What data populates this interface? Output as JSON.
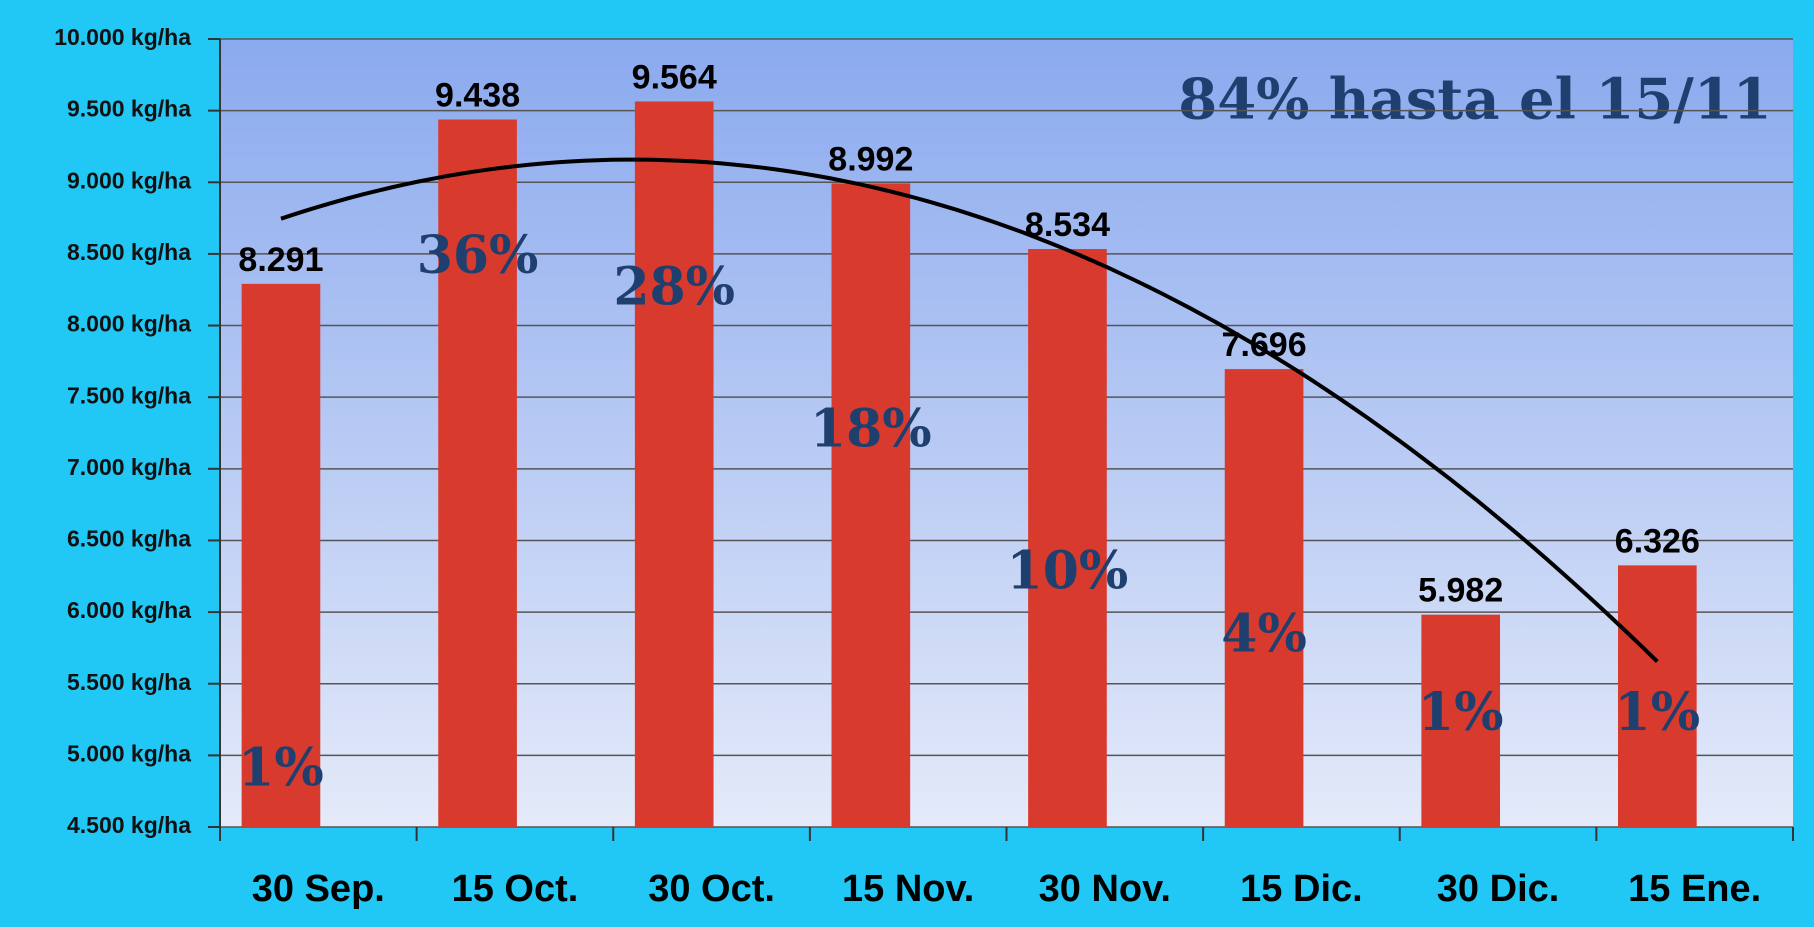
{
  "chart_data": {
    "type": "bar",
    "annotation": "84% hasta el 15/11",
    "categories": [
      "30 Sep.",
      "15 Oct.",
      "30 Oct.",
      "15 Nov.",
      "30 Nov.",
      "15 Dic.",
      "30 Dic.",
      "15 Ene."
    ],
    "values": [
      8291,
      9438,
      9564,
      8992,
      8534,
      7696,
      5982,
      6326
    ],
    "value_labels": [
      "8.291",
      "9.438",
      "9.564",
      "8.992",
      "8.534",
      "7.696",
      "5.982",
      "6.326"
    ],
    "bar_annotations": [
      "1%",
      "36%",
      "28%",
      "18%",
      "10%",
      "4%",
      "1%",
      "1%"
    ],
    "color": "#d93a2e",
    "ylim": [
      4500,
      10000
    ],
    "yticks": [
      {
        "value": 4500,
        "label": "4.500 kg/ha"
      },
      {
        "value": 5000,
        "label": "5.000 kg/ha"
      },
      {
        "value": 5500,
        "label": "5.500 kg/ha"
      },
      {
        "value": 6000,
        "label": "6.000 kg/ha"
      },
      {
        "value": 6500,
        "label": "6.500 kg/ha"
      },
      {
        "value": 7000,
        "label": "7.000 kg/ha"
      },
      {
        "value": 7500,
        "label": "7.500 kg/ha"
      },
      {
        "value": 8000,
        "label": "8.000 kg/ha"
      },
      {
        "value": 8500,
        "label": "8.500 kg/ha"
      },
      {
        "value": 9000,
        "label": "9.000 kg/ha"
      },
      {
        "value": 9500,
        "label": "9.500 kg/ha"
      },
      {
        "value": 10000,
        "label": "10.000 kg/ha"
      }
    ],
    "grid": true,
    "trendline": {
      "type": "polynomial",
      "order": 2,
      "color": "#000000"
    }
  }
}
